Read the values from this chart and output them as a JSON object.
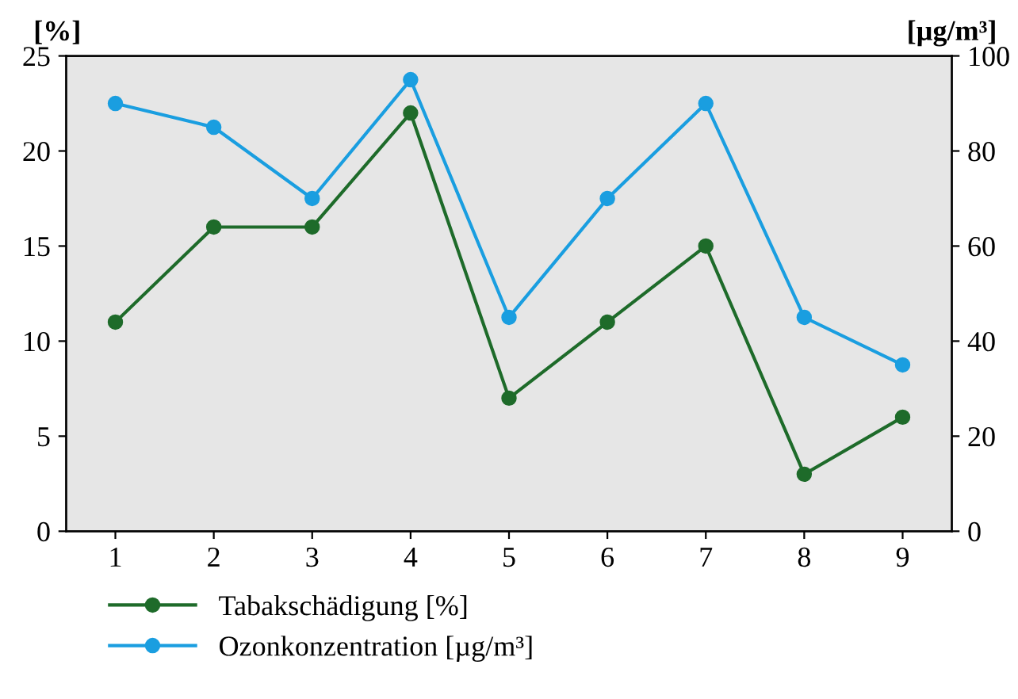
{
  "chart_data": {
    "type": "line",
    "x": [
      1,
      2,
      3,
      4,
      5,
      6,
      7,
      8,
      9
    ],
    "series": [
      {
        "name": "Tabakschädigung [%]",
        "color": "#1e6b2a",
        "values": [
          11,
          16,
          16,
          22,
          7,
          11,
          15,
          3,
          6
        ]
      },
      {
        "name": "Ozonkonzentration [µg/m³]",
        "color": "#1a9ee0",
        "values": [
          90,
          85,
          70,
          95,
          45,
          70,
          90,
          45,
          35
        ],
        "axis": "y2"
      }
    ],
    "ylabel": "[%]",
    "y2label": "[µg/m³]",
    "xlim": [
      0.5,
      9.5
    ],
    "xticks": [
      1,
      2,
      3,
      4,
      5,
      6,
      7,
      8,
      9
    ],
    "ylim": [
      0,
      25
    ],
    "yticks": [
      0,
      5,
      10,
      15,
      20,
      25
    ],
    "y2lim": [
      0,
      100
    ],
    "y2ticks": [
      0,
      20,
      40,
      60,
      80,
      100
    ],
    "marker": "circle",
    "line_style": "solid",
    "legend": "bottom",
    "grid": false
  }
}
